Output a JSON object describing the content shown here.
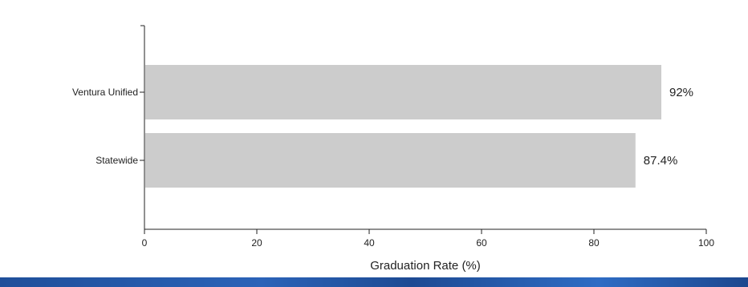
{
  "chart_data": {
    "type": "bar",
    "orientation": "horizontal",
    "categories": [
      "Ventura Unified",
      "Statewide"
    ],
    "values": [
      92,
      87.4
    ],
    "value_labels": [
      "92%",
      "87.4%"
    ],
    "title": "",
    "xlabel": "Graduation Rate (%)",
    "ylabel": "",
    "xlim": [
      0,
      100
    ],
    "xticks": [
      "0",
      "20",
      "40",
      "60",
      "80",
      "100"
    ],
    "grid": false,
    "legend": "none",
    "bar_color": "#cccccc"
  },
  "colors": {
    "axis": "#222222",
    "text": "#222222",
    "footer_band": "#2b63b8"
  }
}
